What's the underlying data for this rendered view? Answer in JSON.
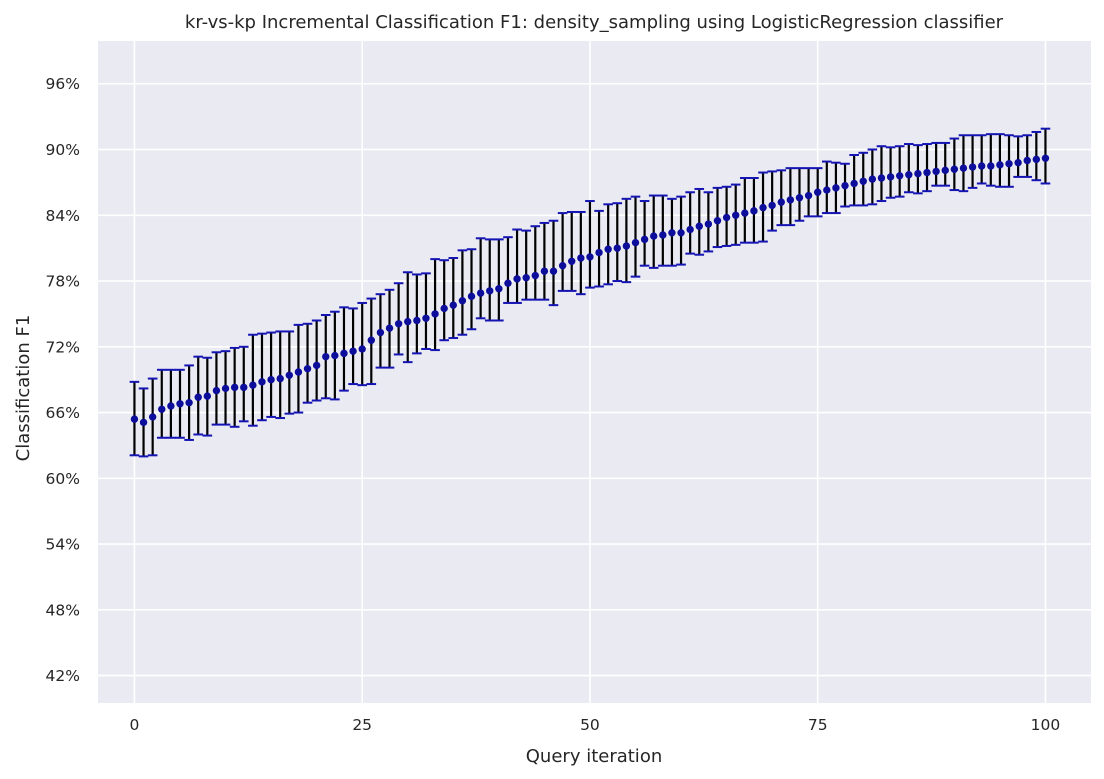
{
  "chart_data": {
    "type": "scatter",
    "title": "kr-vs-kp Incremental Classification F1: density_sampling using LogisticRegression classifier",
    "xlabel": "Query iteration",
    "ylabel": "Classification F1",
    "xlim": [
      -4,
      105
    ],
    "ylim": [
      0.395,
      0.999
    ],
    "x_ticks": [
      0,
      25,
      50,
      75,
      100
    ],
    "x_tick_labels": [
      "0",
      "25",
      "50",
      "75",
      "100"
    ],
    "y_ticks": [
      0.42,
      0.48,
      0.54,
      0.6,
      0.66,
      0.72,
      0.78,
      0.84,
      0.9,
      0.96
    ],
    "y_tick_labels": [
      "42%",
      "48%",
      "54%",
      "60%",
      "66%",
      "72%",
      "78%",
      "84%",
      "90%",
      "96%"
    ],
    "grid": true,
    "colors": {
      "background": "#eaeaf2",
      "grid": "#ffffff",
      "marker": "#0d0d9c",
      "errorbar": "#000000",
      "cap": "#1414b4"
    },
    "series": [
      {
        "x": [
          0,
          1,
          2,
          3,
          4,
          5,
          6,
          7,
          8,
          9,
          10,
          11,
          12,
          13,
          14,
          15,
          16,
          17,
          18,
          19,
          20,
          21,
          22,
          23,
          24,
          25,
          26,
          27,
          28,
          29,
          30,
          31,
          32,
          33,
          34,
          35,
          36,
          37,
          38,
          39,
          40,
          41,
          42,
          43,
          44,
          45,
          46,
          47,
          48,
          49,
          50,
          51,
          52,
          53,
          54,
          55,
          56,
          57,
          58,
          59,
          60,
          61,
          62,
          63,
          64,
          65,
          66,
          67,
          68,
          69,
          70,
          71,
          72,
          73,
          74,
          75,
          76,
          77,
          78,
          79,
          80,
          81,
          82,
          83,
          84,
          85,
          86,
          87,
          88,
          89,
          90,
          91,
          92,
          93,
          94,
          95,
          96,
          97,
          98,
          99,
          100
        ],
        "y": [
          0.654,
          0.651,
          0.656,
          0.663,
          0.666,
          0.668,
          0.669,
          0.674,
          0.675,
          0.68,
          0.682,
          0.683,
          0.683,
          0.685,
          0.688,
          0.69,
          0.691,
          0.694,
          0.697,
          0.7,
          0.703,
          0.711,
          0.712,
          0.714,
          0.716,
          0.718,
          0.726,
          0.733,
          0.737,
          0.741,
          0.743,
          0.744,
          0.746,
          0.75,
          0.755,
          0.758,
          0.762,
          0.766,
          0.769,
          0.771,
          0.773,
          0.778,
          0.782,
          0.783,
          0.785,
          0.789,
          0.789,
          0.794,
          0.798,
          0.801,
          0.802,
          0.806,
          0.809,
          0.81,
          0.812,
          0.815,
          0.818,
          0.821,
          0.822,
          0.824,
          0.824,
          0.827,
          0.83,
          0.832,
          0.835,
          0.838,
          0.84,
          0.842,
          0.844,
          0.847,
          0.849,
          0.852,
          0.854,
          0.856,
          0.858,
          0.861,
          0.863,
          0.865,
          0.867,
          0.869,
          0.871,
          0.873,
          0.874,
          0.875,
          0.876,
          0.877,
          0.878,
          0.879,
          0.88,
          0.881,
          0.882,
          0.883,
          0.884,
          0.885,
          0.885,
          0.886,
          0.887,
          0.888,
          0.89,
          0.891,
          0.892
        ],
        "lower": [
          0.621,
          0.62,
          0.621,
          0.637,
          0.637,
          0.637,
          0.635,
          0.64,
          0.639,
          0.649,
          0.649,
          0.647,
          0.652,
          0.648,
          0.653,
          0.656,
          0.655,
          0.659,
          0.66,
          0.669,
          0.671,
          0.673,
          0.672,
          0.68,
          0.686,
          0.685,
          0.686,
          0.701,
          0.701,
          0.713,
          0.706,
          0.714,
          0.718,
          0.717,
          0.726,
          0.728,
          0.731,
          0.736,
          0.746,
          0.744,
          0.744,
          0.76,
          0.76,
          0.763,
          0.763,
          0.763,
          0.758,
          0.771,
          0.771,
          0.768,
          0.774,
          0.775,
          0.777,
          0.78,
          0.779,
          0.784,
          0.794,
          0.792,
          0.794,
          0.794,
          0.795,
          0.805,
          0.804,
          0.807,
          0.811,
          0.812,
          0.813,
          0.815,
          0.815,
          0.816,
          0.826,
          0.831,
          0.831,
          0.835,
          0.839,
          0.839,
          0.842,
          0.842,
          0.848,
          0.849,
          0.849,
          0.85,
          0.853,
          0.856,
          0.857,
          0.861,
          0.86,
          0.862,
          0.867,
          0.867,
          0.863,
          0.862,
          0.865,
          0.869,
          0.867,
          0.866,
          0.866,
          0.875,
          0.875,
          0.872,
          0.869
        ],
        "upper": [
          0.688,
          0.682,
          0.691,
          0.699,
          0.699,
          0.699,
          0.703,
          0.711,
          0.71,
          0.715,
          0.716,
          0.719,
          0.72,
          0.731,
          0.732,
          0.733,
          0.734,
          0.734,
          0.74,
          0.741,
          0.744,
          0.749,
          0.752,
          0.756,
          0.755,
          0.76,
          0.764,
          0.768,
          0.772,
          0.778,
          0.788,
          0.786,
          0.787,
          0.8,
          0.799,
          0.801,
          0.808,
          0.809,
          0.819,
          0.818,
          0.818,
          0.82,
          0.827,
          0.826,
          0.83,
          0.833,
          0.835,
          0.842,
          0.843,
          0.843,
          0.853,
          0.844,
          0.85,
          0.851,
          0.855,
          0.857,
          0.853,
          0.858,
          0.858,
          0.855,
          0.857,
          0.861,
          0.864,
          0.861,
          0.865,
          0.866,
          0.868,
          0.874,
          0.874,
          0.879,
          0.88,
          0.881,
          0.883,
          0.883,
          0.883,
          0.883,
          0.889,
          0.888,
          0.887,
          0.895,
          0.897,
          0.9,
          0.903,
          0.902,
          0.903,
          0.905,
          0.904,
          0.905,
          0.906,
          0.906,
          0.91,
          0.913,
          0.913,
          0.913,
          0.914,
          0.914,
          0.913,
          0.912,
          0.913,
          0.916,
          0.919
        ]
      }
    ]
  }
}
